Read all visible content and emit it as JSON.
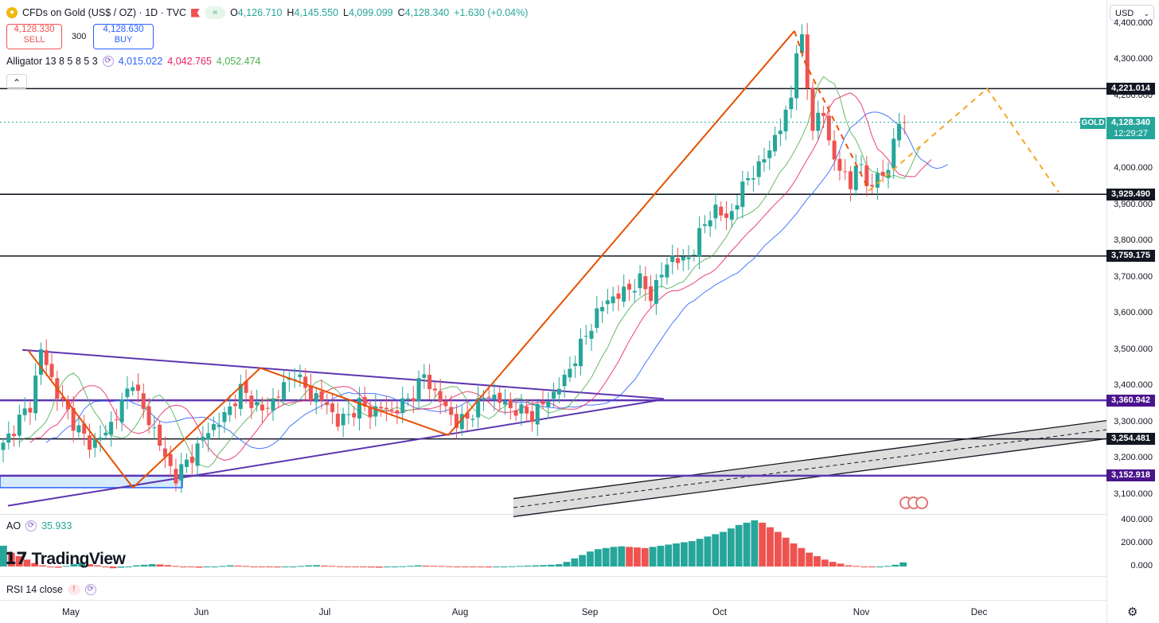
{
  "header": {
    "symbol_title": "CFDs on Gold (US$ / OZ) · 1D · TVC",
    "ohlc": {
      "o_label": "O",
      "o": "4,126.710",
      "h_label": "H",
      "h": "4,145.550",
      "l_label": "L",
      "l": "4,099.099",
      "c_label": "C",
      "c": "4,128.340",
      "change": "+1.630 (+0.04%)"
    },
    "sell_price": "4,128.330",
    "sell_label": "SELL",
    "spread": "300",
    "buy_price": "4,128.630",
    "buy_label": "BUY",
    "currency": "USD",
    "collapse_glyph": "⌃"
  },
  "indicators": {
    "alligator": {
      "label": "Alligator 13 8 5 8 5 3",
      "jaw": "4,015.022",
      "teeth": "4,042.765",
      "lips": "4,052.474"
    },
    "ao": {
      "label": "AO",
      "value": "35.933"
    },
    "rsi": {
      "label": "RSI 14 close",
      "warn": "!"
    }
  },
  "branding": {
    "logo_text": "TradingView"
  },
  "colors": {
    "up": "#26a69a",
    "down": "#ef5350",
    "jaw": "#2962ff",
    "teeth": "#e91e63",
    "lips": "#4caf50",
    "orange": "#e65100",
    "orange_dashed": "#f5a623",
    "purple": "#5e35b1",
    "gold_line": "#26a69a"
  },
  "price_axis": {
    "labels": [
      "4,400.000",
      "4,300.000",
      "4,200.000",
      "4,000.000",
      "3,900.000",
      "3,800.000",
      "3,700.000",
      "3,600.000",
      "3,500.000",
      "3,400.000",
      "3,300.000",
      "3,200.000",
      "3,100.000"
    ]
  },
  "ao_axis": {
    "labels": [
      "400.000",
      "200.000",
      "0.000"
    ]
  },
  "time_axis": {
    "labels": [
      "May",
      "Jun",
      "Jul",
      "Aug",
      "Sep",
      "Oct",
      "Nov",
      "Dec"
    ]
  },
  "level_tags": [
    {
      "label": "4,221.014",
      "price": 4221.014,
      "color": "#131722"
    },
    {
      "label": "3,929.490",
      "price": 3929.49,
      "color": "#131722"
    },
    {
      "label": "3,759.175",
      "price": 3759.175,
      "color": "#131722"
    },
    {
      "label": "3,360.942",
      "price": 3360.942,
      "color": "#4a148c"
    },
    {
      "label": "3,254.481",
      "price": 3254.481,
      "color": "#131722"
    },
    {
      "label": "3,152.918",
      "price": 3152.918,
      "color": "#4a148c"
    }
  ],
  "gold_tag": {
    "name": "GOLD",
    "price": "4,128.340",
    "countdown": "12:29:27"
  },
  "chart_data": {
    "type": "candlestick",
    "title": "CFDs on Gold (US$ / OZ) · 1D · TVC",
    "ylim": [
      3050,
      4450
    ],
    "x_months": [
      "May",
      "Jun",
      "Jul",
      "Aug",
      "Sep",
      "Oct",
      "Nov",
      "Dec"
    ],
    "horizontal_levels": [
      4221.014,
      3929.49,
      3759.175,
      3360.942,
      3254.481,
      3152.918
    ],
    "current_price": 4128.34,
    "close_path": [
      [
        0,
        3235
      ],
      [
        3,
        3310
      ],
      [
        5,
        3345
      ],
      [
        7,
        3500
      ],
      [
        10,
        3380
      ],
      [
        13,
        3300
      ],
      [
        16,
        3240
      ],
      [
        19,
        3270
      ],
      [
        22,
        3350
      ],
      [
        24,
        3420
      ],
      [
        26,
        3330
      ],
      [
        28,
        3280
      ],
      [
        30,
        3200
      ],
      [
        32,
        3150
      ],
      [
        34,
        3190
      ],
      [
        36,
        3230
      ],
      [
        38,
        3280
      ],
      [
        40,
        3300
      ],
      [
        42,
        3340
      ],
      [
        44,
        3390
      ],
      [
        46,
        3360
      ],
      [
        48,
        3330
      ],
      [
        50,
        3360
      ],
      [
        52,
        3400
      ],
      [
        54,
        3440
      ],
      [
        56,
        3390
      ],
      [
        58,
        3370
      ],
      [
        60,
        3350
      ],
      [
        62,
        3300
      ],
      [
        64,
        3320
      ],
      [
        66,
        3350
      ],
      [
        68,
        3330
      ],
      [
        70,
        3340
      ],
      [
        72,
        3330
      ],
      [
        74,
        3350
      ],
      [
        76,
        3380
      ],
      [
        78,
        3430
      ],
      [
        80,
        3380
      ],
      [
        82,
        3340
      ],
      [
        84,
        3300
      ],
      [
        86,
        3310
      ],
      [
        88,
        3350
      ],
      [
        90,
        3380
      ],
      [
        92,
        3360
      ],
      [
        94,
        3340
      ],
      [
        96,
        3330
      ],
      [
        98,
        3320
      ],
      [
        100,
        3350
      ],
      [
        102,
        3380
      ],
      [
        104,
        3420
      ],
      [
        106,
        3480
      ],
      [
        108,
        3540
      ],
      [
        110,
        3600
      ],
      [
        112,
        3640
      ],
      [
        114,
        3650
      ],
      [
        116,
        3670
      ],
      [
        118,
        3690
      ],
      [
        120,
        3650
      ],
      [
        122,
        3710
      ],
      [
        124,
        3760
      ],
      [
        126,
        3740
      ],
      [
        128,
        3780
      ],
      [
        130,
        3850
      ],
      [
        132,
        3890
      ],
      [
        134,
        3860
      ],
      [
        136,
        3910
      ],
      [
        138,
        3980
      ],
      [
        140,
        4000
      ],
      [
        142,
        4060
      ],
      [
        144,
        4110
      ],
      [
        146,
        4200
      ],
      [
        147,
        4330
      ],
      [
        148,
        4350
      ],
      [
        149,
        4230
      ],
      [
        150,
        4120
      ],
      [
        152,
        4150
      ],
      [
        154,
        4020
      ],
      [
        156,
        3980
      ],
      [
        157,
        3950
      ],
      [
        158,
        4020
      ],
      [
        160,
        3960
      ],
      [
        162,
        3970
      ],
      [
        164,
        4000
      ],
      [
        165,
        4080
      ],
      [
        166,
        4130
      ],
      [
        167,
        4128
      ]
    ],
    "alligator": {
      "jaw_end": 4015.022,
      "teeth_end": 4042.765,
      "lips_end": 4052.474
    },
    "ao_values": [
      180,
      120,
      90,
      60,
      30,
      10,
      -5,
      -10,
      5,
      20,
      35,
      20,
      10,
      -5,
      -15,
      -10,
      0,
      10,
      15,
      20,
      18,
      12,
      5,
      0,
      -5,
      -10,
      -5,
      0,
      5,
      10,
      8,
      5,
      0,
      -3,
      -5,
      -8,
      -4,
      0,
      5,
      10,
      12,
      8,
      5,
      2,
      0,
      -2,
      -5,
      -8,
      -10,
      -6,
      -2,
      2,
      6,
      10,
      8,
      6,
      4,
      2,
      0,
      -2,
      -4,
      -6,
      -8,
      -5,
      -2,
      2,
      5,
      8,
      10,
      12,
      15,
      20,
      40,
      70,
      100,
      130,
      150,
      160,
      170,
      175,
      170,
      165,
      160,
      170,
      180,
      190,
      200,
      210,
      220,
      240,
      260,
      280,
      300,
      330,
      360,
      380,
      400,
      380,
      340,
      300,
      250,
      200,
      160,
      120,
      90,
      60,
      40,
      25,
      10,
      5,
      0,
      -5,
      -3,
      5,
      15,
      35.933
    ],
    "ao_ylim": [
      -40,
      440
    ]
  }
}
